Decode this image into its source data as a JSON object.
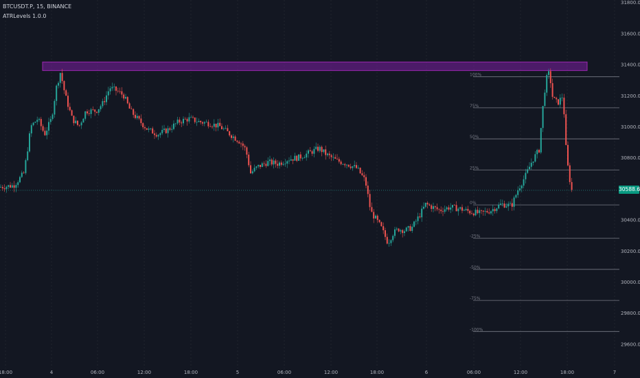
{
  "header": {
    "symbol": "BTCUSDT.P, 15, BINANCE",
    "indicator": "ATRLevels 1.0.0"
  },
  "current_price": "30588.6",
  "colors": {
    "up": "#26a69a",
    "down": "#ef5350",
    "zone": "#7b1fa2",
    "levels": "#787b86",
    "tag": "#089981"
  },
  "chart_data": {
    "type": "candlestick",
    "y_axis": {
      "side": "right",
      "ylim": [
        29480,
        31800
      ],
      "ticks": [
        29600,
        29800,
        30000,
        30200,
        30400,
        30600,
        30800,
        31000,
        31200,
        31400,
        31600,
        31800
      ],
      "tick_labels": [
        "29600.0",
        "29800.0",
        "30000.0",
        "30200.0",
        "30400.0",
        "30600.0",
        "30800.0",
        "31000.0",
        "31200.0",
        "31400.0",
        "31600.0",
        "31800.0"
      ]
    },
    "x_axis": {
      "tick_labels": [
        "18:00",
        "4",
        "06:00",
        "12:00",
        "18:00",
        "5",
        "06:00",
        "12:00",
        "18:00",
        "6",
        "06:00",
        "12:00",
        "18:00",
        "7"
      ],
      "tick_positions": [
        8,
        75,
        142,
        210,
        278,
        346,
        414,
        482,
        549,
        621,
        690,
        758,
        826,
        895
      ]
    },
    "resistance_zone": {
      "low": 31360,
      "high": 31415
    },
    "atr_levels": [
      {
        "label": "100%",
        "value": 31320
      },
      {
        "label": "75%",
        "value": 31120
      },
      {
        "label": "50%",
        "value": 30920
      },
      {
        "label": "25%",
        "value": 30720
      },
      {
        "label": "0%",
        "value": 30495
      },
      {
        "label": "-25%",
        "value": 30280
      },
      {
        "label": "-50%",
        "value": 30080
      },
      {
        "label": "-75%",
        "value": 29880
      },
      {
        "label": "-100%",
        "value": 29680
      }
    ],
    "price_line": 30588.6,
    "close_path": [
      [
        0,
        30610
      ],
      [
        20,
        30620
      ],
      [
        35,
        30700
      ],
      [
        45,
        31000
      ],
      [
        55,
        31050
      ],
      [
        65,
        30950
      ],
      [
        75,
        31050
      ],
      [
        82,
        31250
      ],
      [
        88,
        31350
      ],
      [
        95,
        31200
      ],
      [
        105,
        31050
      ],
      [
        115,
        31000
      ],
      [
        125,
        31100
      ],
      [
        140,
        31100
      ],
      [
        150,
        31150
      ],
      [
        160,
        31250
      ],
      [
        170,
        31230
      ],
      [
        180,
        31200
      ],
      [
        190,
        31100
      ],
      [
        200,
        31050
      ],
      [
        215,
        30980
      ],
      [
        230,
        30950
      ],
      [
        245,
        30980
      ],
      [
        260,
        31030
      ],
      [
        275,
        31050
      ],
      [
        290,
        31030
      ],
      [
        305,
        31020
      ],
      [
        320,
        31000
      ],
      [
        335,
        30950
      ],
      [
        350,
        30900
      ],
      [
        358,
        30850
      ],
      [
        365,
        30700
      ],
      [
        375,
        30740
      ],
      [
        390,
        30770
      ],
      [
        405,
        30760
      ],
      [
        420,
        30790
      ],
      [
        435,
        30800
      ],
      [
        450,
        30830
      ],
      [
        465,
        30860
      ],
      [
        475,
        30820
      ],
      [
        490,
        30780
      ],
      [
        505,
        30760
      ],
      [
        520,
        30730
      ],
      [
        532,
        30650
      ],
      [
        540,
        30450
      ],
      [
        548,
        30400
      ],
      [
        555,
        30350
      ],
      [
        565,
        30250
      ],
      [
        572,
        30310
      ],
      [
        580,
        30340
      ],
      [
        590,
        30330
      ],
      [
        600,
        30350
      ],
      [
        610,
        30420
      ],
      [
        620,
        30500
      ],
      [
        630,
        30480
      ],
      [
        640,
        30460
      ],
      [
        655,
        30480
      ],
      [
        670,
        30470
      ],
      [
        685,
        30450
      ],
      [
        700,
        30440
      ],
      [
        715,
        30460
      ],
      [
        730,
        30500
      ],
      [
        745,
        30490
      ],
      [
        755,
        30600
      ],
      [
        765,
        30680
      ],
      [
        775,
        30780
      ],
      [
        785,
        30850
      ],
      [
        790,
        31100
      ],
      [
        795,
        31300
      ],
      [
        800,
        31350
      ],
      [
        805,
        31180
      ],
      [
        812,
        31150
      ],
      [
        820,
        31200
      ],
      [
        825,
        30800
      ],
      [
        832,
        30590
      ]
    ]
  }
}
